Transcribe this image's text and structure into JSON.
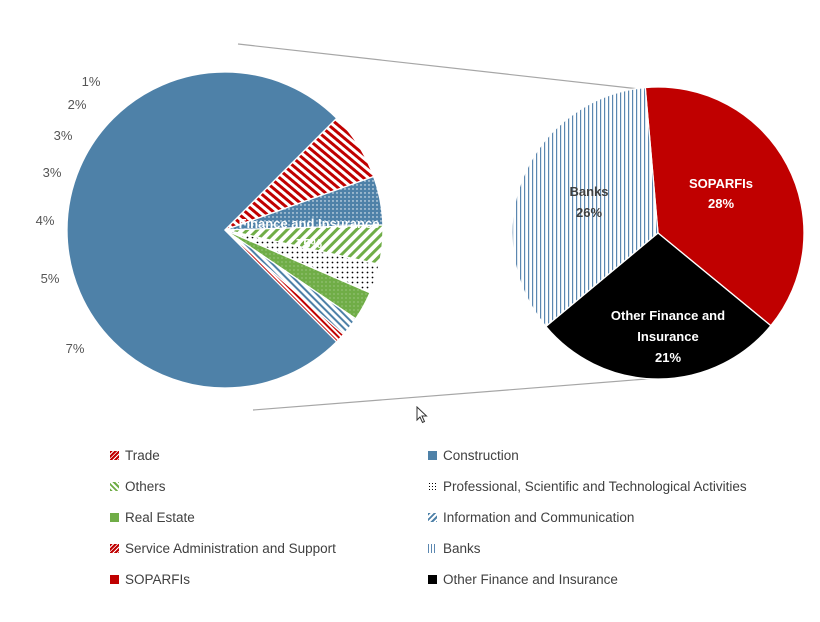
{
  "chart_data": [
    {
      "type": "pie",
      "categories": [
        "Finance and Insurance",
        "Service Administration and Support",
        "Construction",
        "Others",
        "Professional, Scientific and Technological Activities",
        "Real Estate",
        "Information and Communication",
        "Trade"
      ],
      "values": [
        75,
        7,
        5,
        4,
        3,
        3,
        2,
        1
      ],
      "data_labels": [
        "75%",
        "7%",
        "5%",
        "4%",
        "3%",
        "3%",
        "2%",
        "1%"
      ],
      "inner_label": "Finance and Insurance"
    },
    {
      "type": "pie",
      "categories": [
        "SOPARFIs",
        "Other Finance and Insurance",
        "Banks"
      ],
      "values": [
        28,
        21,
        26
      ],
      "data_labels": [
        "28%",
        "21%",
        "26%"
      ],
      "inner_labels": [
        "SOPARFIs",
        "Other Finance and Insurance",
        "Banks"
      ]
    }
  ],
  "legend": [
    {
      "label": "Trade",
      "key": "trade"
    },
    {
      "label": "Construction",
      "key": "construction"
    },
    {
      "label": "Others",
      "key": "others"
    },
    {
      "label": "Professional, Scientific and Technological Activities",
      "key": "professional"
    },
    {
      "label": "Real Estate",
      "key": "realestate"
    },
    {
      "label": "Information and Communication",
      "key": "infocomm"
    },
    {
      "label": "Service Administration and Support",
      "key": "service"
    },
    {
      "label": "Banks",
      "key": "banks"
    },
    {
      "label": "SOPARFIs",
      "key": "soparfis"
    },
    {
      "label": "Other Finance and Insurance",
      "key": "otherfin"
    }
  ],
  "colors": {
    "finance": "#4e81a8",
    "red": "#c00000",
    "green": "#70ad47",
    "black": "#000000",
    "banks": "#5b87b0"
  }
}
